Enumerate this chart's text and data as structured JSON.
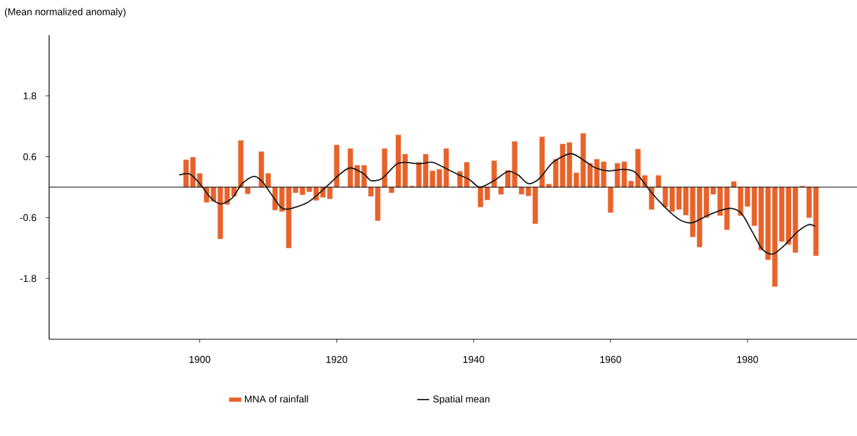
{
  "chart_data": {
    "type": "bar",
    "ylabel": "(Mean normalized anomaly)",
    "xlim": [
      1878,
      1996
    ],
    "ylim": [
      -3,
      3
    ],
    "xticks": [
      1900,
      1920,
      1940,
      1960,
      1980
    ],
    "yticks": [
      -1.8,
      -0.6,
      0.6,
      1.8
    ],
    "grid": false,
    "legend": "bottom",
    "ref_lines": [
      {
        "axis": "y",
        "value": 0,
        "color": "#000000"
      }
    ],
    "series": [
      {
        "name": "MNA of rainfall",
        "color": "#e8622a",
        "x": [
          1898,
          1899,
          1900,
          1901,
          1902,
          1903,
          1904,
          1905,
          1906,
          1907,
          1908,
          1909,
          1910,
          1911,
          1912,
          1913,
          1914,
          1915,
          1916,
          1917,
          1918,
          1919,
          1920,
          1921,
          1922,
          1923,
          1924,
          1925,
          1926,
          1927,
          1928,
          1929,
          1930,
          1931,
          1932,
          1933,
          1934,
          1935,
          1936,
          1937,
          1938,
          1939,
          1940,
          1941,
          1942,
          1943,
          1944,
          1945,
          1946,
          1947,
          1948,
          1949,
          1950,
          1951,
          1952,
          1953,
          1954,
          1955,
          1956,
          1957,
          1958,
          1959,
          1960,
          1961,
          1962,
          1963,
          1964,
          1965,
          1966,
          1967,
          1968,
          1969,
          1970,
          1971,
          1972,
          1973,
          1974,
          1975,
          1976,
          1977,
          1978,
          1979,
          1980,
          1981,
          1982,
          1983,
          1984,
          1985,
          1986,
          1987,
          1988,
          1989,
          1990
        ],
        "values": [
          0.54,
          0.59,
          0.27,
          -0.3,
          -0.28,
          -1.02,
          -0.34,
          -0.18,
          0.92,
          -0.13,
          0,
          0.7,
          0.27,
          -0.45,
          -0.48,
          -1.2,
          -0.11,
          -0.15,
          -0.09,
          -0.26,
          -0.2,
          -0.23,
          0.83,
          0,
          0.76,
          0.43,
          0.43,
          -0.18,
          -0.66,
          0.76,
          -0.11,
          1.03,
          0.65,
          0.02,
          0.49,
          0.65,
          0.32,
          0.35,
          0.76,
          0,
          0.31,
          0.49,
          0,
          -0.39,
          -0.25,
          0.52,
          -0.14,
          0.33,
          0.9,
          -0.14,
          -0.17,
          -0.72,
          0.99,
          0.06,
          0.55,
          0.85,
          0.88,
          0.28,
          1.06,
          0.47,
          0.55,
          0.5,
          -0.5,
          0.47,
          0.5,
          0.12,
          0.75,
          0.23,
          -0.44,
          0.23,
          -0.39,
          -0.48,
          -0.44,
          -0.55,
          -0.98,
          -1.18,
          -0.6,
          -0.14,
          -0.56,
          -0.84,
          0.11,
          -0.56,
          -0.38,
          -0.76,
          -1.24,
          -1.43,
          -1.96,
          -1.07,
          -1.13,
          -1.29,
          0.02,
          -0.6,
          -1.35
        ]
      },
      {
        "name": "Spatial mean",
        "type": "line",
        "color": "#1a1a1a",
        "marker": "none",
        "line_style": "solid",
        "x": [
          1897,
          1898.5,
          1900,
          1901.6,
          1903,
          1904.7,
          1906.2,
          1907.8,
          1909,
          1910.3,
          1911.8,
          1913,
          1915.9,
          1918.5,
          1920.5,
          1922,
          1924,
          1925,
          1926.6,
          1928.7,
          1930,
          1932,
          1934,
          1935.8,
          1937.9,
          1939.4,
          1940.9,
          1943,
          1945,
          1946.5,
          1948,
          1949.6,
          1951.6,
          1954.2,
          1956.2,
          1957.8,
          1959.8,
          1961.8,
          1963.4,
          1964.4,
          1966,
          1967.4,
          1969,
          1970.5,
          1972,
          1974,
          1976,
          1977.7,
          1979.2,
          1980.7,
          1982.2,
          1983.7,
          1985.3,
          1987.3,
          1988.9,
          1989.9
        ],
        "values": [
          0.24,
          0.26,
          0.07,
          -0.21,
          -0.33,
          -0.22,
          0.07,
          0.21,
          0.13,
          -0.11,
          -0.39,
          -0.43,
          -0.29,
          0.01,
          0.26,
          0.38,
          0.26,
          0.13,
          0.17,
          0.45,
          0.49,
          0.46,
          0.49,
          0.38,
          0.24,
          0.15,
          0,
          0.13,
          0.31,
          0.24,
          0.07,
          0.17,
          0.49,
          0.66,
          0.52,
          0.38,
          0.32,
          0.35,
          0.31,
          0.17,
          -0.11,
          -0.32,
          -0.53,
          -0.67,
          -0.7,
          -0.57,
          -0.46,
          -0.42,
          -0.53,
          -0.88,
          -1.23,
          -1.32,
          -1.16,
          -0.88,
          -0.74,
          -0.77
        ]
      }
    ]
  }
}
